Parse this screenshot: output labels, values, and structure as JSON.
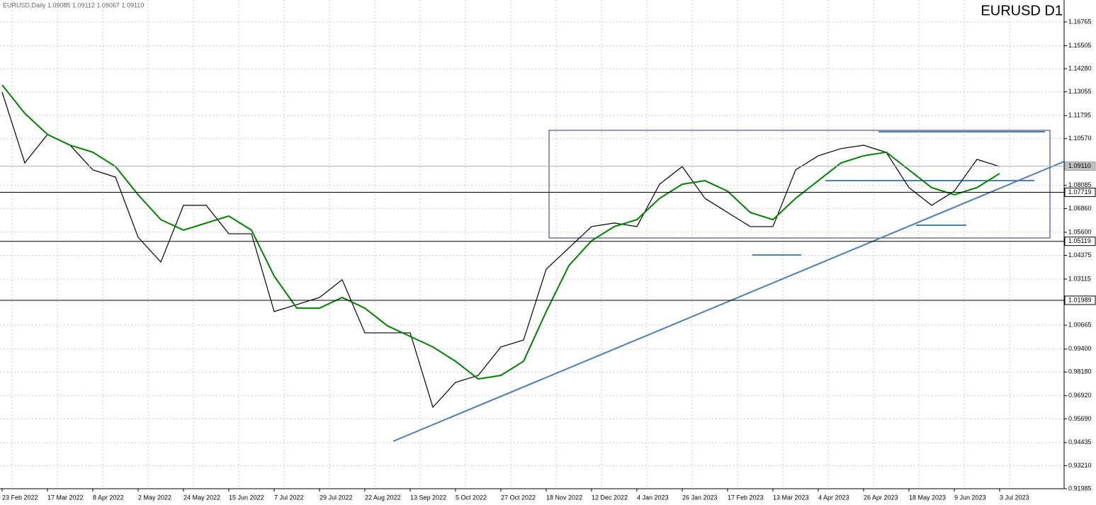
{
  "chart_data": {
    "type": "line",
    "title": "EURUSD D1",
    "info": "EURUSD,Daily  1.09085 1.09112 1.09067 1.09110",
    "categories": [
      "23 Feb 2022",
      null,
      "17 Mar 2022",
      null,
      "8 Apr 2022",
      null,
      "2 May 2022",
      null,
      "24 May 2022",
      null,
      "15 Jun 2022",
      null,
      "7 Jul 2022",
      null,
      "29 Jul 2022",
      null,
      "22 Aug 2022",
      null,
      "13 Sep 2022",
      null,
      "5 Oct 2022",
      null,
      "27 Oct 2022",
      null,
      "18 Nov 2022",
      null,
      "12 Dec 2022",
      null,
      "4 Jan 2023",
      null,
      "26 Jan 2023",
      null,
      "17 Feb 2023",
      null,
      "13 Mar 2023",
      null,
      "4 Apr 2023",
      null,
      "26 Apr 2023",
      null,
      "18 May 2023",
      null,
      "9 Jun 2023",
      null,
      "3 Jul 2023"
    ],
    "series": [
      {
        "color": "#000000",
        "values": [
          1.1304,
          1.0928,
          1.1079,
          1.1022,
          1.0891,
          1.0853,
          1.0533,
          1.0402,
          1.0703,
          1.0703,
          1.0552,
          1.0552,
          1.0139,
          1.0176,
          1.0214,
          1.0308,
          1.0026,
          1.0026,
          1.0026,
          0.9631,
          0.9763,
          0.98,
          0.9951,
          0.9988,
          1.0364,
          1.0477,
          1.059,
          1.0609,
          1.059,
          1.0815,
          1.0909,
          1.074,
          1.0665,
          1.059,
          1.059,
          1.0891,
          1.0966,
          1.1004,
          1.1022,
          1.0984,
          1.0797,
          1.0703,
          1.0778,
          1.0947,
          1.0909
        ]
      },
      {
        "color": "#008000",
        "values": [
          1.1342,
          1.1191,
          1.1079,
          1.1022,
          1.0985,
          1.0909,
          1.0759,
          1.0627,
          1.0571,
          1.0609,
          1.0646,
          1.0571,
          1.0327,
          1.0157,
          1.0157,
          1.0214,
          1.0157,
          1.0063,
          1.0007,
          0.9951,
          0.9875,
          0.9781,
          0.98,
          0.9875,
          1.0139,
          1.0383,
          1.0515,
          1.059,
          1.0627,
          1.074,
          1.0815,
          1.0834,
          1.0778,
          1.0665,
          1.0627,
          1.074,
          1.0834,
          1.0928,
          1.0966,
          1.0985,
          1.0891,
          1.0797,
          1.0759,
          1.0797,
          1.0872
        ]
      }
    ],
    "ylim": [
      0.91985,
      1.1793
    ],
    "yticks": [
      1.16765,
      1.15505,
      {
        "value": 1.1428,
        "label": "1.14280"
      },
      1.13055,
      1.11795,
      {
        "value": 1.1057,
        "label": "1.10570"
      },
      1.08085,
      {
        "value": 1.0686,
        "label": "1.06860"
      },
      {
        "value": 1.056,
        "label": "1.05600"
      },
      1.04375,
      1.03115,
      1.00665,
      {
        "value": 0.994,
        "label": "0.99400"
      },
      {
        "value": 0.9818,
        "label": "0.98180"
      },
      {
        "value": 0.9692,
        "label": "0.96920"
      },
      {
        "value": 0.9569,
        "label": "0.95690"
      },
      0.94435,
      {
        "value": 0.9321,
        "label": "0.93210"
      },
      0.91985
    ],
    "levels": [
      1.07719,
      1.05119,
      1.01989
    ],
    "bid": {
      "value": 1.0911,
      "label": "1.09110"
    },
    "grid": true
  }
}
